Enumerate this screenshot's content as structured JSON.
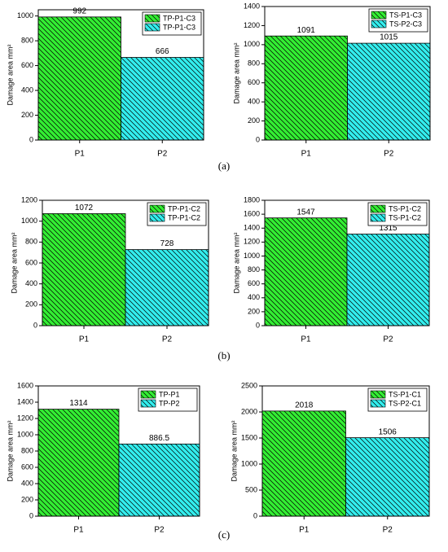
{
  "panel_labels": [
    "(a)",
    "(b)",
    "(c)"
  ],
  "chart_data": [
    {
      "type": "bar",
      "ylabel": "Damage area mm²",
      "categories": [
        "P1",
        "P2"
      ],
      "hatch": true,
      "ylim": [
        0,
        1050
      ],
      "yticks": [
        0,
        200,
        400,
        600,
        800,
        1000
      ],
      "series": [
        {
          "name": "TP-P1-C3",
          "color": "#33ee33",
          "values": [
            992,
            null
          ]
        },
        {
          "name": "TP-P1-C3",
          "color": "#33eeee",
          "values": [
            null,
            666
          ]
        }
      ]
    },
    {
      "type": "bar",
      "ylabel": "Damage area mm²",
      "categories": [
        "P1",
        "P2"
      ],
      "hatch": true,
      "ylim": [
        0,
        1400
      ],
      "yticks": [
        0,
        200,
        400,
        600,
        800,
        1000,
        1200,
        1400
      ],
      "series": [
        {
          "name": "TS-P1-C3",
          "color": "#33ee33",
          "values": [
            1091,
            null
          ]
        },
        {
          "name": "TS-P2-C3",
          "color": "#33eeee",
          "values": [
            null,
            1015
          ]
        }
      ]
    },
    {
      "type": "bar",
      "ylabel": "Damage area mm²",
      "categories": [
        "P1",
        "P2"
      ],
      "hatch": true,
      "ylim": [
        0,
        1200
      ],
      "yticks": [
        0,
        200,
        400,
        600,
        800,
        1000,
        1200
      ],
      "series": [
        {
          "name": "TP-P1-C2",
          "color": "#33ee33",
          "values": [
            1072,
            null
          ]
        },
        {
          "name": "TP-P1-C2",
          "color": "#33eeee",
          "values": [
            null,
            728
          ]
        }
      ]
    },
    {
      "type": "bar",
      "ylabel": "Damage area mm²",
      "categories": [
        "P1",
        "P2"
      ],
      "hatch": true,
      "ylim": [
        0,
        1800
      ],
      "yticks": [
        0,
        200,
        400,
        600,
        800,
        1000,
        1200,
        1400,
        1600,
        1800
      ],
      "series": [
        {
          "name": "TS-P1-C2",
          "color": "#33ee33",
          "values": [
            1547,
            null
          ]
        },
        {
          "name": "TS-P1-C2",
          "color": "#33eeee",
          "values": [
            null,
            1315
          ]
        }
      ]
    },
    {
      "type": "bar",
      "ylabel": "Damage area mm²",
      "categories": [
        "P1",
        "P2"
      ],
      "hatch": true,
      "ylim": [
        0,
        1600
      ],
      "yticks": [
        0,
        200,
        400,
        600,
        800,
        1000,
        1200,
        1400,
        1600
      ],
      "series": [
        {
          "name": "TP-P1",
          "color": "#33ee33",
          "values": [
            1314,
            null
          ]
        },
        {
          "name": "TP-P2",
          "color": "#33eeee",
          "values": [
            null,
            886.5
          ]
        }
      ]
    },
    {
      "type": "bar",
      "ylabel": "Damage area mm²",
      "categories": [
        "P1",
        "P2"
      ],
      "hatch": true,
      "ylim": [
        0,
        2500
      ],
      "yticks": [
        0,
        500,
        1000,
        1500,
        2000,
        2500
      ],
      "series": [
        {
          "name": "TS-P1-C1",
          "color": "#33ee33",
          "values": [
            2018,
            null
          ]
        },
        {
          "name": "TS-P2-C1",
          "color": "#33eeee",
          "values": [
            null,
            1506
          ]
        }
      ]
    }
  ]
}
